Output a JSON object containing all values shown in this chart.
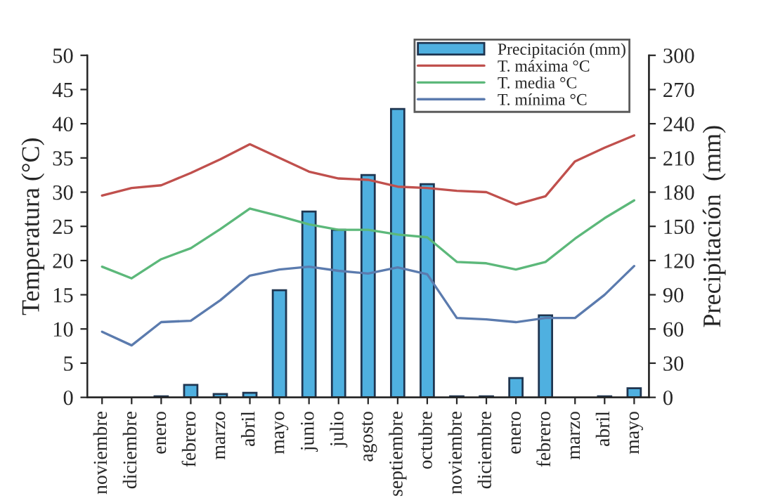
{
  "chart_data": {
    "type": "line",
    "categories": [
      "noviembre",
      "diciembre",
      "enero",
      "febrero",
      "marzo",
      "abril",
      "mayo",
      "junio",
      "julio",
      "agosto",
      "septiembre",
      "octubre",
      "noviembre",
      "diciembre",
      "enero",
      "febrero",
      "marzo",
      "abril",
      "mayo"
    ],
    "ylabel": "Temperatura (°C)",
    "y2label": "Precipitación  (mm)",
    "ylim": [
      0,
      50
    ],
    "yticks": [
      0,
      5,
      10,
      15,
      20,
      25,
      30,
      35,
      40,
      45,
      50
    ],
    "y2lim": [
      0,
      300
    ],
    "y2ticks": [
      0,
      30,
      60,
      90,
      120,
      150,
      180,
      210,
      240,
      270,
      300
    ],
    "grid": false,
    "legend": "top right",
    "marker": "none",
    "series": [
      {
        "name": "Precipitación (mm)",
        "type": "bar",
        "axis": "y2",
        "color": "#4fb0e0",
        "values": [
          null,
          null,
          1,
          11,
          3,
          4,
          94,
          163,
          147,
          195,
          253,
          187,
          1,
          1,
          17,
          72,
          null,
          1,
          8
        ]
      },
      {
        "name": "T. máxima °C",
        "color": "#c0504d",
        "values": [
          29.5,
          30.6,
          31,
          32.8,
          34.8,
          37,
          35,
          33,
          32,
          31.8,
          30.8,
          30.6,
          30.2,
          30,
          28.2,
          29.4,
          34.5,
          36.5,
          38.3
        ]
      },
      {
        "name": "T. media °C",
        "color": "#5cb87a",
        "values": [
          19.1,
          17.4,
          20.2,
          21.8,
          24.6,
          27.6,
          26.5,
          25.3,
          24.5,
          24.5,
          23.8,
          23.4,
          19.8,
          19.6,
          18.7,
          19.8,
          23.2,
          26.2,
          28.8
        ]
      },
      {
        "name": "T. mínima °C",
        "color": "#5b7bae",
        "values": [
          9.6,
          7.6,
          11,
          11.2,
          14.2,
          17.8,
          18.7,
          19.1,
          18.5,
          18.1,
          19,
          18,
          11.6,
          11.4,
          11,
          11.6,
          11.6,
          15,
          19.2
        ]
      }
    ]
  }
}
